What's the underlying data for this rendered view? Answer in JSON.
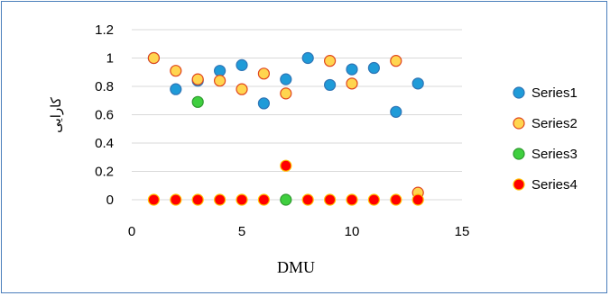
{
  "chart_data": {
    "type": "scatter",
    "title": "",
    "xlabel": "DMU",
    "ylabel": "کارایی",
    "xlim": [
      0,
      15
    ],
    "ylim": [
      0,
      1.2
    ],
    "x_ticks": [
      "0",
      "5",
      "10",
      "15"
    ],
    "y_ticks": [
      "0",
      "0.2",
      "0.4",
      "0.6",
      "0.8",
      "1",
      "1.2"
    ],
    "grid": "horizontal",
    "legend_position": "right",
    "series": [
      {
        "name": "Series1",
        "color": "#1f9bd8",
        "stroke": "#2e75b6",
        "points": [
          {
            "x": 1,
            "y": 1.0
          },
          {
            "x": 2,
            "y": 0.78
          },
          {
            "x": 3,
            "y": 0.84
          },
          {
            "x": 4,
            "y": 0.91
          },
          {
            "x": 5,
            "y": 0.95
          },
          {
            "x": 6,
            "y": 0.68
          },
          {
            "x": 7,
            "y": 0.85
          },
          {
            "x": 8,
            "y": 1.0
          },
          {
            "x": 9,
            "y": 0.81
          },
          {
            "x": 10,
            "y": 0.92
          },
          {
            "x": 11,
            "y": 0.93
          },
          {
            "x": 12,
            "y": 0.62
          },
          {
            "x": 13,
            "y": 0.82
          }
        ]
      },
      {
        "name": "Series2",
        "color": "#ffd54f",
        "stroke": "#e0451c",
        "points": [
          {
            "x": 1,
            "y": 1.0
          },
          {
            "x": 2,
            "y": 0.91
          },
          {
            "x": 3,
            "y": 0.85
          },
          {
            "x": 4,
            "y": 0.84
          },
          {
            "x": 5,
            "y": 0.78
          },
          {
            "x": 6,
            "y": 0.89
          },
          {
            "x": 7,
            "y": 0.75
          },
          {
            "x": 9,
            "y": 0.98
          },
          {
            "x": 10,
            "y": 0.82
          },
          {
            "x": 12,
            "y": 0.98
          },
          {
            "x": 13,
            "y": 0.05
          }
        ]
      },
      {
        "name": "Series3",
        "color": "#3fcf3f",
        "stroke": "#2e9a2e",
        "points": [
          {
            "x": 3,
            "y": 0.69
          },
          {
            "x": 7,
            "y": 0.0
          }
        ]
      },
      {
        "name": "Series4",
        "color": "#ff0000",
        "stroke": "#ffc000",
        "points": [
          {
            "x": 1,
            "y": 0
          },
          {
            "x": 2,
            "y": 0
          },
          {
            "x": 3,
            "y": 0
          },
          {
            "x": 4,
            "y": 0
          },
          {
            "x": 5,
            "y": 0
          },
          {
            "x": 6,
            "y": 0
          },
          {
            "x": 7,
            "y": 0.24
          },
          {
            "x": 8,
            "y": 0
          },
          {
            "x": 9,
            "y": 0
          },
          {
            "x": 10,
            "y": 0
          },
          {
            "x": 11,
            "y": 0
          },
          {
            "x": 12,
            "y": 0
          },
          {
            "x": 13,
            "y": 0
          }
        ]
      }
    ]
  }
}
